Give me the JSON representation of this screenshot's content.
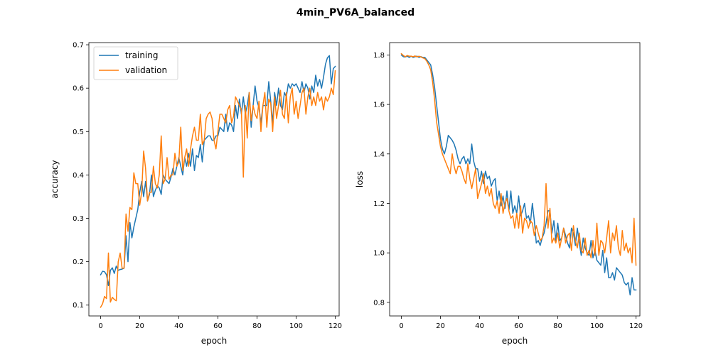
{
  "figure": {
    "suptitle": "4min_PV6A_balanced"
  },
  "colors": {
    "training": "#1f77b4",
    "validation": "#ff7f0e"
  },
  "chart_data": [
    {
      "type": "line",
      "xlabel": "epoch",
      "ylabel": "accuracy",
      "xlim": [
        -6,
        122
      ],
      "ylim": [
        0.075,
        0.705
      ],
      "xticks": [
        0,
        20,
        40,
        60,
        80,
        100,
        120
      ],
      "yticks": [
        0.1,
        0.2,
        0.3,
        0.4,
        0.5,
        0.6,
        0.7
      ],
      "ytick_labels": [
        "0.1",
        "0.2",
        "0.3",
        "0.4",
        "0.5",
        "0.6",
        "0.7"
      ],
      "legend": {
        "position": "upper-left",
        "entries": [
          "training",
          "validation"
        ]
      },
      "series": [
        {
          "name": "training",
          "color": "#1f77b4",
          "values": [
            0.17,
            0.178,
            0.177,
            0.17,
            0.145,
            0.18,
            0.186,
            0.173,
            0.19,
            0.18,
            0.182,
            0.183,
            0.185,
            0.26,
            0.2,
            0.29,
            0.255,
            0.28,
            0.3,
            0.32,
            0.36,
            0.385,
            0.35,
            0.385,
            0.34,
            0.355,
            0.4,
            0.35,
            0.365,
            0.375,
            0.37,
            0.355,
            0.4,
            0.39,
            0.385,
            0.38,
            0.395,
            0.415,
            0.4,
            0.42,
            0.44,
            0.42,
            0.4,
            0.44,
            0.42,
            0.45,
            0.42,
            0.46,
            0.41,
            0.445,
            0.44,
            0.47,
            0.43,
            0.48,
            0.485,
            0.49,
            0.49,
            0.48,
            0.48,
            0.49,
            0.49,
            0.51,
            0.505,
            0.5,
            0.54,
            0.5,
            0.52,
            0.515,
            0.5,
            0.56,
            0.53,
            0.575,
            0.54,
            0.58,
            0.54,
            0.56,
            0.59,
            0.51,
            0.56,
            0.605,
            0.57,
            0.555,
            0.52,
            0.56,
            0.56,
            0.56,
            0.615,
            0.57,
            0.52,
            0.59,
            0.56,
            0.6,
            0.56,
            0.55,
            0.59,
            0.58,
            0.61,
            0.6,
            0.61,
            0.605,
            0.61,
            0.6,
            0.59,
            0.615,
            0.59,
            0.61,
            0.6,
            0.575,
            0.605,
            0.59,
            0.63,
            0.605,
            0.62,
            0.6,
            0.625,
            0.655,
            0.67,
            0.675,
            0.61,
            0.645,
            0.65
          ],
          "x_start": 0
        },
        {
          "name": "validation",
          "color": "#ff7f0e",
          "values": [
            0.095,
            0.103,
            0.12,
            0.115,
            0.22,
            0.107,
            0.118,
            0.113,
            0.11,
            0.2,
            0.22,
            0.185,
            0.185,
            0.31,
            0.27,
            0.325,
            0.32,
            0.405,
            0.38,
            0.38,
            0.33,
            0.36,
            0.455,
            0.415,
            0.34,
            0.36,
            0.36,
            0.42,
            0.38,
            0.37,
            0.4,
            0.49,
            0.38,
            0.39,
            0.44,
            0.39,
            0.4,
            0.4,
            0.45,
            0.42,
            0.43,
            0.51,
            0.41,
            0.44,
            0.46,
            0.42,
            0.46,
            0.49,
            0.51,
            0.48,
            0.48,
            0.54,
            0.47,
            0.48,
            0.53,
            0.54,
            0.545,
            0.53,
            0.48,
            0.46,
            0.5,
            0.54,
            0.54,
            0.53,
            0.52,
            0.55,
            0.56,
            0.52,
            0.535,
            0.58,
            0.57,
            0.56,
            0.55,
            0.395,
            0.56,
            0.485,
            0.59,
            0.525,
            0.56,
            0.54,
            0.53,
            0.57,
            0.5,
            0.56,
            0.59,
            0.51,
            0.575,
            0.565,
            0.5,
            0.58,
            0.53,
            0.56,
            0.595,
            0.54,
            0.53,
            0.59,
            0.52,
            0.58,
            0.6,
            0.54,
            0.57,
            0.53,
            0.56,
            0.59,
            0.6,
            0.54,
            0.58,
            0.6,
            0.56,
            0.58,
            0.56,
            0.59,
            0.57,
            0.58,
            0.55,
            0.58,
            0.57,
            0.58,
            0.6,
            0.585,
            0.64
          ],
          "x_start": 0
        }
      ]
    },
    {
      "type": "line",
      "xlabel": "epoch",
      "ylabel": "loss",
      "xlim": [
        -6,
        122
      ],
      "ylim": [
        0.745,
        1.85
      ],
      "xticks": [
        0,
        20,
        40,
        60,
        80,
        100,
        120
      ],
      "yticks": [
        0.8,
        1.0,
        1.2,
        1.4,
        1.6,
        1.8
      ],
      "ytick_labels": [
        "0.8",
        "1.0",
        "1.2",
        "1.4",
        "1.6",
        "1.8"
      ],
      "legend": null,
      "series": [
        {
          "name": "training",
          "color": "#1f77b4",
          "values": [
            1.8,
            1.793,
            1.792,
            1.795,
            1.79,
            1.795,
            1.79,
            1.793,
            1.795,
            1.79,
            1.793,
            1.79,
            1.79,
            1.78,
            1.77,
            1.76,
            1.72,
            1.67,
            1.6,
            1.53,
            1.46,
            1.42,
            1.4,
            1.43,
            1.475,
            1.465,
            1.455,
            1.44,
            1.415,
            1.38,
            1.36,
            1.38,
            1.39,
            1.36,
            1.38,
            1.36,
            1.44,
            1.37,
            1.34,
            1.34,
            1.29,
            1.33,
            1.28,
            1.33,
            1.3,
            1.31,
            1.27,
            1.29,
            1.3,
            1.21,
            1.25,
            1.19,
            1.23,
            1.18,
            1.25,
            1.17,
            1.25,
            1.16,
            1.19,
            1.16,
            1.23,
            1.15,
            1.17,
            1.2,
            1.14,
            1.15,
            1.12,
            1.2,
            1.13,
            1.04,
            1.05,
            1.03,
            1.06,
            1.08,
            1.12,
            1.17,
            1.17,
            1.08,
            1.13,
            1.05,
            1.12,
            1.05,
            1.06,
            1.1,
            1.07,
            1.04,
            1.02,
            1.1,
            1.08,
            1.03,
            1.1,
            1.04,
            0.99,
            1.06,
            1.02,
            1.0,
            0.99,
            1.05,
            0.98,
            1.01,
            0.97,
            0.96,
            0.95,
            1.01,
            0.92,
            0.98,
            0.9,
            0.9,
            0.92,
            0.89,
            0.94,
            0.93,
            0.92,
            0.91,
            0.88,
            0.87,
            0.88,
            0.83,
            0.9,
            0.85,
            0.85
          ],
          "x_start": 0
        },
        {
          "name": "validation",
          "color": "#ff7f0e",
          "values": [
            1.805,
            1.798,
            1.793,
            1.798,
            1.795,
            1.795,
            1.793,
            1.796,
            1.792,
            1.795,
            1.792,
            1.788,
            1.785,
            1.775,
            1.76,
            1.74,
            1.69,
            1.62,
            1.53,
            1.48,
            1.43,
            1.4,
            1.38,
            1.36,
            1.34,
            1.32,
            1.4,
            1.35,
            1.32,
            1.35,
            1.35,
            1.33,
            1.3,
            1.28,
            1.36,
            1.3,
            1.26,
            1.3,
            1.34,
            1.22,
            1.25,
            1.28,
            1.32,
            1.24,
            1.27,
            1.23,
            1.26,
            1.2,
            1.18,
            1.21,
            1.16,
            1.24,
            1.16,
            1.2,
            1.22,
            1.17,
            1.14,
            1.15,
            1.1,
            1.16,
            1.1,
            1.19,
            1.08,
            1.14,
            1.13,
            1.1,
            1.13,
            1.12,
            1.07,
            1.11,
            1.08,
            1.05,
            1.06,
            1.11,
            1.28,
            1.1,
            1.18,
            1.04,
            1.06,
            1.04,
            1.08,
            1.02,
            1.06,
            1.1,
            1.04,
            1.07,
            1.08,
            1.01,
            1.11,
            1.05,
            1.02,
            1.08,
            1.01,
            1.0,
            1.06,
            0.99,
            1.01,
            0.98,
            1.05,
            0.99,
            1.12,
            0.99,
            1.05,
            1.04,
            1.0,
            1.06,
            1.13,
            1.0,
            1.08,
            1.05,
            1.11,
            1.02,
            0.99,
            1.09,
            1.01,
            1.04,
            1.0,
            1.02,
            0.96,
            1.14,
            0.95
          ],
          "x_start": 0
        }
      ]
    }
  ]
}
